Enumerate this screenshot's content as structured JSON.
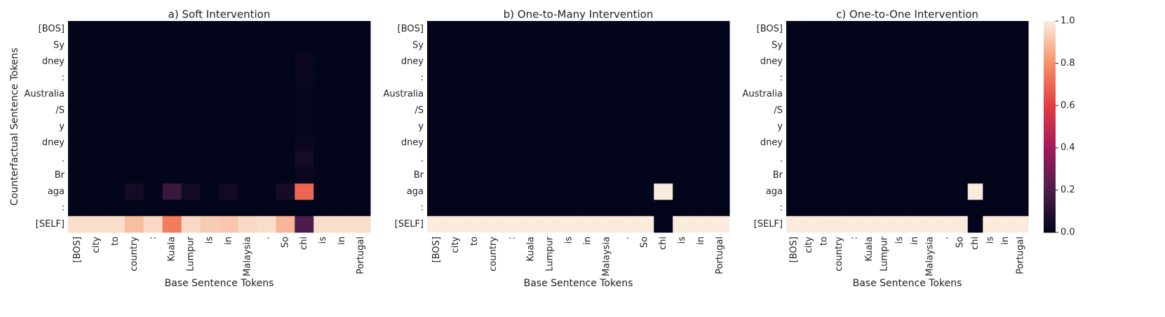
{
  "chart_data": [
    {
      "type": "heatmap",
      "title": "a) Soft Intervention",
      "xlabel": "Base Sentence Tokens",
      "ylabel": "Counterfactual Sentence Tokens",
      "x": [
        "[BOS]",
        "city",
        "to",
        "country",
        ":",
        "Kuala",
        "Lumpur",
        "is",
        "in",
        "Malaysia",
        ".",
        "So",
        "chi",
        "is",
        "in",
        "Portugal"
      ],
      "y": [
        "[BOS]",
        "Sy",
        "dney",
        ":",
        "Australia",
        "/S",
        "y",
        "dney",
        ".",
        "Br",
        "aga",
        ":",
        "[SELF]"
      ],
      "highlight_x": [
        3,
        4
      ],
      "highlight_y": [
        9,
        10
      ],
      "highlight_color": "#e8000b",
      "colormap": "rocket",
      "zlim": [
        0,
        1
      ],
      "z": [
        [
          0,
          0,
          0,
          0,
          0,
          0,
          0,
          0,
          0,
          0,
          0,
          0,
          0,
          0,
          0,
          0
        ],
        [
          0,
          0,
          0,
          0,
          0,
          0,
          0,
          0,
          0,
          0,
          0,
          0,
          0,
          0,
          0,
          0
        ],
        [
          0,
          0,
          0,
          0,
          0,
          0,
          0,
          0,
          0,
          0,
          0,
          0,
          0.02,
          0,
          0,
          0
        ],
        [
          0,
          0,
          0,
          0,
          0,
          0,
          0,
          0,
          0,
          0,
          0,
          0,
          0.02,
          0,
          0,
          0
        ],
        [
          0,
          0,
          0,
          0,
          0,
          0,
          0,
          0,
          0,
          0,
          0,
          0,
          0.01,
          0,
          0,
          0
        ],
        [
          0,
          0,
          0,
          0,
          0,
          0,
          0,
          0,
          0,
          0,
          0,
          0,
          0.01,
          0,
          0,
          0
        ],
        [
          0,
          0,
          0,
          0,
          0,
          0,
          0,
          0,
          0,
          0,
          0,
          0,
          0.01,
          0,
          0,
          0
        ],
        [
          0,
          0,
          0,
          0,
          0,
          0,
          0,
          0,
          0,
          0,
          0,
          0,
          0.02,
          0,
          0,
          0
        ],
        [
          0,
          0,
          0,
          0,
          0,
          0,
          0,
          0,
          0,
          0,
          0,
          0,
          0.05,
          0,
          0,
          0
        ],
        [
          0,
          0,
          0,
          0,
          0,
          0,
          0,
          0,
          0,
          0,
          0,
          0,
          0.02,
          0,
          0,
          0
        ],
        [
          0,
          0,
          0,
          0.05,
          0,
          0.15,
          0.04,
          0,
          0.04,
          0,
          0,
          0.05,
          0.7,
          0,
          0,
          0
        ],
        [
          0,
          0,
          0,
          0,
          0,
          0,
          0,
          0,
          0,
          0,
          0,
          0,
          0,
          0,
          0,
          0
        ],
        [
          0.97,
          0.97,
          0.97,
          0.9,
          0.96,
          0.75,
          0.96,
          0.93,
          0.92,
          0.96,
          0.97,
          0.88,
          0.2,
          0.97,
          0.97,
          0.97
        ]
      ]
    },
    {
      "type": "heatmap",
      "title": "b) One-to-Many Intervention",
      "xlabel": "Base Sentence Tokens",
      "x": [
        "[BOS]",
        "city",
        "to",
        "country",
        ":",
        "Kuala",
        "Lumpur",
        "is",
        "in",
        "Malaysia",
        ".",
        "So",
        "chi",
        "is",
        "in",
        "Portugal"
      ],
      "y": [
        "[BOS]",
        "Sy",
        "dney",
        ":",
        "Australia",
        "/S",
        "y",
        "dney",
        ".",
        "Br",
        "aga",
        ":",
        "[SELF]"
      ],
      "highlight_x": [
        3,
        4
      ],
      "highlight_y": [
        9,
        10
      ],
      "highlight_color": "#e8000b",
      "colormap": "rocket",
      "zlim": [
        0,
        1
      ],
      "z": [
        [
          0,
          0,
          0,
          0,
          0,
          0,
          0,
          0,
          0,
          0,
          0,
          0,
          0,
          0,
          0,
          0
        ],
        [
          0,
          0,
          0,
          0,
          0,
          0,
          0,
          0,
          0,
          0,
          0,
          0,
          0,
          0,
          0,
          0
        ],
        [
          0,
          0,
          0,
          0,
          0,
          0,
          0,
          0,
          0,
          0,
          0,
          0,
          0,
          0,
          0,
          0
        ],
        [
          0,
          0,
          0,
          0,
          0,
          0,
          0,
          0,
          0,
          0,
          0,
          0,
          0,
          0,
          0,
          0
        ],
        [
          0,
          0,
          0,
          0,
          0,
          0,
          0,
          0,
          0,
          0,
          0,
          0,
          0,
          0,
          0,
          0
        ],
        [
          0,
          0,
          0,
          0,
          0,
          0,
          0,
          0,
          0,
          0,
          0,
          0,
          0,
          0,
          0,
          0
        ],
        [
          0,
          0,
          0,
          0,
          0,
          0,
          0,
          0,
          0,
          0,
          0,
          0,
          0,
          0,
          0,
          0
        ],
        [
          0,
          0,
          0,
          0,
          0,
          0,
          0,
          0,
          0,
          0,
          0,
          0,
          0,
          0,
          0,
          0
        ],
        [
          0,
          0,
          0,
          0,
          0,
          0,
          0,
          0,
          0,
          0,
          0,
          0,
          0,
          0,
          0,
          0
        ],
        [
          0,
          0,
          0,
          0,
          0,
          0,
          0,
          0,
          0,
          0,
          0,
          0,
          0,
          0,
          0,
          0
        ],
        [
          0,
          0,
          0,
          0,
          0,
          0,
          0,
          0,
          0,
          0,
          0,
          0,
          1,
          0,
          0,
          0
        ],
        [
          0,
          0,
          0,
          0,
          0,
          0,
          0,
          0,
          0,
          0,
          0,
          0,
          0,
          0,
          0,
          0
        ],
        [
          1,
          1,
          1,
          1,
          1,
          1,
          1,
          1,
          1,
          1,
          1,
          1,
          0,
          1,
          1,
          1
        ]
      ]
    },
    {
      "type": "heatmap",
      "title": "c) One-to-One Intervention",
      "xlabel": "Base Sentence Tokens",
      "x": [
        "[BOS]",
        "city",
        "to",
        "country",
        ":",
        "Kuala",
        "Lumpur",
        "is",
        "in",
        "Malaysia",
        ".",
        "So",
        "chi",
        "is",
        "in",
        "Portugal"
      ],
      "y": [
        "[BOS]",
        "Sy",
        "dney",
        ":",
        "Australia",
        "/S",
        "y",
        "dney",
        ".",
        "Br",
        "aga",
        ":",
        "[SELF]"
      ],
      "highlight_x": [
        3,
        4
      ],
      "highlight_y": [
        9,
        10
      ],
      "highlight_color": "#e8000b",
      "colormap": "rocket",
      "zlim": [
        0,
        1
      ],
      "z": [
        [
          0,
          0,
          0,
          0,
          0,
          0,
          0,
          0,
          0,
          0,
          0,
          0,
          0,
          0,
          0,
          0
        ],
        [
          0,
          0,
          0,
          0,
          0,
          0,
          0,
          0,
          0,
          0,
          0,
          0,
          0,
          0,
          0,
          0
        ],
        [
          0,
          0,
          0,
          0,
          0,
          0,
          0,
          0,
          0,
          0,
          0,
          0,
          0,
          0,
          0,
          0
        ],
        [
          0,
          0,
          0,
          0,
          0,
          0,
          0,
          0,
          0,
          0,
          0,
          0,
          0,
          0,
          0,
          0
        ],
        [
          0,
          0,
          0,
          0,
          0,
          0,
          0,
          0,
          0,
          0,
          0,
          0,
          0,
          0,
          0,
          0
        ],
        [
          0,
          0,
          0,
          0,
          0,
          0,
          0,
          0,
          0,
          0,
          0,
          0,
          0,
          0,
          0,
          0
        ],
        [
          0,
          0,
          0,
          0,
          0,
          0,
          0,
          0,
          0,
          0,
          0,
          0,
          0,
          0,
          0,
          0
        ],
        [
          0,
          0,
          0,
          0,
          0,
          0,
          0,
          0,
          0,
          0,
          0,
          0,
          0,
          0,
          0,
          0
        ],
        [
          0,
          0,
          0,
          0,
          0,
          0,
          0,
          0,
          0,
          0,
          0,
          0,
          0,
          0,
          0,
          0
        ],
        [
          0,
          0,
          0,
          0,
          0,
          0,
          0,
          0,
          0,
          0,
          0,
          0,
          0,
          0,
          0,
          0
        ],
        [
          0,
          0,
          0,
          0,
          0,
          0,
          0,
          0,
          0,
          0,
          0,
          0,
          1,
          0,
          0,
          0
        ],
        [
          0,
          0,
          0,
          0,
          0,
          0,
          0,
          0,
          0,
          0,
          0,
          0,
          0,
          0,
          0,
          0
        ],
        [
          1,
          1,
          1,
          1,
          1,
          1,
          1,
          1,
          1,
          1,
          1,
          1,
          0,
          1,
          1,
          1
        ]
      ]
    },
    {
      "type": "colorbar",
      "colormap": "rocket",
      "zlim": [
        0,
        1
      ],
      "ticks": [
        {
          "value": 0,
          "label": "0.0"
        },
        {
          "value": 0.2,
          "label": "0.2"
        },
        {
          "value": 0.4,
          "label": "0.4"
        },
        {
          "value": 0.6,
          "label": "0.6"
        },
        {
          "value": 0.8,
          "label": "0.8"
        },
        {
          "value": 1,
          "label": "1.0"
        }
      ]
    }
  ]
}
